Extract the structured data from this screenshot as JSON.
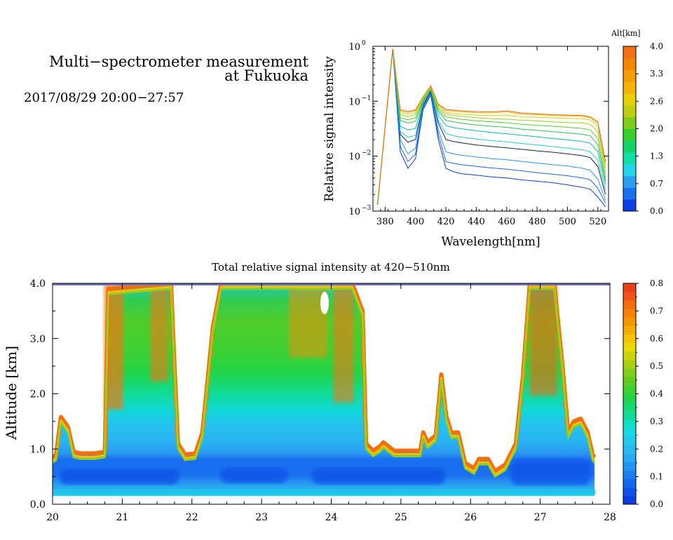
{
  "header": {
    "title_line1": "Multi−spectrometer measurement",
    "title_line2": "at Fukuoka",
    "date_range": "2017/08/29 20:00−27:57"
  },
  "chart_data": [
    {
      "type": "line",
      "xlabel": "Wavelength[nm]",
      "ylabel": "Relative signal intensity",
      "xlim": [
        372,
        527
      ],
      "ylim": [
        0.001,
        1
      ],
      "yscale": "log",
      "x_ticks": [
        "380",
        "400",
        "420",
        "440",
        "460",
        "480",
        "500",
        "520"
      ],
      "y_ticks": [
        {
          "base": "10",
          "exp": "−3"
        },
        {
          "base": "10",
          "exp": "−2"
        },
        {
          "base": "10",
          "exp": "−1"
        },
        {
          "base": "10",
          "exp": "0"
        }
      ],
      "grid": false,
      "x": [
        375,
        385,
        390,
        395,
        400,
        405,
        410,
        415,
        420,
        425,
        430,
        440,
        450,
        460,
        470,
        480,
        490,
        500,
        510,
        515,
        520,
        525
      ],
      "series": [
        {
          "color": "#0a3fc8",
          "values": [
            0.0013,
            0.9,
            0.012,
            0.006,
            0.009,
            0.07,
            0.13,
            0.02,
            0.006,
            0.0052,
            0.0048,
            0.0045,
            0.0042,
            0.004,
            0.0037,
            0.0035,
            0.0033,
            0.003,
            0.0027,
            0.0025,
            0.0018,
            0.0012
          ]
        },
        {
          "color": "#1a66e0",
          "values": [
            0.0013,
            0.9,
            0.015,
            0.008,
            0.011,
            0.075,
            0.14,
            0.025,
            0.008,
            0.0074,
            0.007,
            0.0065,
            0.0061,
            0.0058,
            0.0054,
            0.005,
            0.0047,
            0.0044,
            0.004,
            0.0037,
            0.0026,
            0.0014
          ]
        },
        {
          "color": "#2a95f0",
          "values": [
            0.0013,
            0.9,
            0.02,
            0.011,
            0.014,
            0.08,
            0.15,
            0.03,
            0.012,
            0.011,
            0.0104,
            0.0097,
            0.009,
            0.0086,
            0.008,
            0.0075,
            0.007,
            0.0066,
            0.006,
            0.0055,
            0.0038,
            0.0016
          ]
        },
        {
          "color": "#15223a",
          "values": [
            0.0013,
            0.9,
            0.025,
            0.018,
            0.02,
            0.085,
            0.15,
            0.04,
            0.02,
            0.0185,
            0.0175,
            0.016,
            0.015,
            0.0142,
            0.0133,
            0.0125,
            0.0118,
            0.011,
            0.0102,
            0.0094,
            0.0065,
            0.002
          ]
        },
        {
          "color": "#22c8dc",
          "values": [
            0.0013,
            0.9,
            0.028,
            0.022,
            0.024,
            0.09,
            0.16,
            0.045,
            0.026,
            0.0235,
            0.0222,
            0.0205,
            0.0192,
            0.0182,
            0.017,
            0.016,
            0.015,
            0.014,
            0.013,
            0.012,
            0.0085,
            0.0024
          ]
        },
        {
          "color": "#10b8a0",
          "values": [
            0.0013,
            0.9,
            0.035,
            0.03,
            0.032,
            0.095,
            0.16,
            0.055,
            0.036,
            0.033,
            0.0315,
            0.029,
            0.027,
            0.0255,
            0.024,
            0.0225,
            0.021,
            0.0198,
            0.0185,
            0.0172,
            0.012,
            0.003
          ]
        },
        {
          "color": "#30c050",
          "values": [
            0.0013,
            0.9,
            0.045,
            0.04,
            0.043,
            0.1,
            0.17,
            0.065,
            0.045,
            0.042,
            0.04,
            0.037,
            0.035,
            0.0335,
            0.031,
            0.0295,
            0.028,
            0.0265,
            0.025,
            0.0235,
            0.016,
            0.0035
          ]
        },
        {
          "color": "#58cc30",
          "values": [
            0.0013,
            0.9,
            0.05,
            0.046,
            0.05,
            0.105,
            0.17,
            0.07,
            0.052,
            0.049,
            0.047,
            0.044,
            0.042,
            0.0405,
            0.038,
            0.0365,
            0.035,
            0.0335,
            0.032,
            0.03,
            0.021,
            0.004
          ]
        },
        {
          "color": "#9ad020",
          "values": [
            0.0013,
            0.9,
            0.057,
            0.052,
            0.057,
            0.11,
            0.18,
            0.075,
            0.058,
            0.055,
            0.053,
            0.05,
            0.048,
            0.047,
            0.045,
            0.044,
            0.042,
            0.041,
            0.04,
            0.038,
            0.028,
            0.005
          ]
        },
        {
          "color": "#d8cc10",
          "values": [
            0.0013,
            0.9,
            0.062,
            0.057,
            0.062,
            0.115,
            0.18,
            0.08,
            0.063,
            0.06,
            0.058,
            0.056,
            0.055,
            0.056,
            0.052,
            0.051,
            0.05,
            0.049,
            0.048,
            0.046,
            0.035,
            0.006
          ]
        },
        {
          "color": "#f0b000",
          "values": [
            0.0013,
            0.9,
            0.067,
            0.062,
            0.067,
            0.12,
            0.19,
            0.085,
            0.068,
            0.066,
            0.064,
            0.062,
            0.061,
            0.064,
            0.058,
            0.057,
            0.055,
            0.054,
            0.053,
            0.05,
            0.04,
            0.007
          ]
        },
        {
          "color": "#e07018",
          "values": [
            0.0013,
            0.9,
            0.07,
            0.065,
            0.07,
            0.12,
            0.19,
            0.088,
            0.071,
            0.069,
            0.067,
            0.065,
            0.064,
            0.067,
            0.061,
            0.059,
            0.057,
            0.056,
            0.055,
            0.052,
            0.042,
            0.008
          ]
        }
      ],
      "colorbar": {
        "title": "Alt[km]",
        "labels": [
          "0.0",
          "0.7",
          "1.3",
          "2.0",
          "2.6",
          "3.3",
          "4.0"
        ],
        "colors": [
          "#0a3ee8",
          "#1670f0",
          "#2a9ff2",
          "#22d4ec",
          "#10e0a8",
          "#12d46a",
          "#34d02c",
          "#7ccc18",
          "#bcd010",
          "#e8d000",
          "#f5b200",
          "#f59c00",
          "#f58600",
          "#f57012"
        ]
      }
    },
    {
      "type": "heatmap",
      "title": "Total relative signal intensity at 420−510nm",
      "ylabel": "Altitude [km]",
      "xlim": [
        20,
        28
      ],
      "ylim": [
        0,
        4
      ],
      "x_ticks": [
        "20",
        "21",
        "22",
        "23",
        "24",
        "25",
        "26",
        "27",
        "28"
      ],
      "y_ticks": [
        "0.0",
        "1.0",
        "2.0",
        "3.0",
        "4.0"
      ],
      "grid": false,
      "data_range": [
        0.15,
        27.78
      ],
      "cloud_boundary_km": [
        [
          20.0,
          0.85
        ],
        [
          20.05,
          0.9
        ],
        [
          20.12,
          1.58
        ],
        [
          20.22,
          1.4
        ],
        [
          20.3,
          0.95
        ],
        [
          20.4,
          0.92
        ],
        [
          20.6,
          0.92
        ],
        [
          20.75,
          0.95
        ],
        [
          20.8,
          3.9
        ],
        [
          21.7,
          4.0
        ],
        [
          21.75,
          2.5
        ],
        [
          21.8,
          1.1
        ],
        [
          21.9,
          0.9
        ],
        [
          22.05,
          0.92
        ],
        [
          22.15,
          1.3
        ],
        [
          22.3,
          3.2
        ],
        [
          22.42,
          4.0
        ],
        [
          24.3,
          4.0
        ],
        [
          24.45,
          3.5
        ],
        [
          24.5,
          1.1
        ],
        [
          24.6,
          0.97
        ],
        [
          24.7,
          1.05
        ],
        [
          24.75,
          1.12
        ],
        [
          24.82,
          1.05
        ],
        [
          24.9,
          0.97
        ],
        [
          25.28,
          0.97
        ],
        [
          25.32,
          1.3
        ],
        [
          25.38,
          1.12
        ],
        [
          25.5,
          1.25
        ],
        [
          25.58,
          2.35
        ],
        [
          25.65,
          1.6
        ],
        [
          25.72,
          1.3
        ],
        [
          25.82,
          1.3
        ],
        [
          25.92,
          0.75
        ],
        [
          26.05,
          0.65
        ],
        [
          26.12,
          0.82
        ],
        [
          26.25,
          0.82
        ],
        [
          26.35,
          0.6
        ],
        [
          26.5,
          0.72
        ],
        [
          26.65,
          1.1
        ],
        [
          26.75,
          2.3
        ],
        [
          26.85,
          4.0
        ],
        [
          27.2,
          4.0
        ],
        [
          27.32,
          2.5
        ],
        [
          27.4,
          1.3
        ],
        [
          27.48,
          1.5
        ],
        [
          27.58,
          1.55
        ],
        [
          27.68,
          1.3
        ],
        [
          27.75,
          0.9
        ],
        [
          27.78,
          0.85
        ]
      ],
      "colorbar": {
        "labels": [
          "0.0",
          "0.1",
          "0.2",
          "0.3",
          "0.4",
          "0.5",
          "0.6",
          "0.7",
          "0.8"
        ],
        "colors": [
          "#0a3ee8",
          "#0f52ea",
          "#1568ee",
          "#1a7ef0",
          "#2294f2",
          "#2aa8f4",
          "#2ab8f0",
          "#22c8ec",
          "#18d8e4",
          "#10e0c0",
          "#10dc98",
          "#14d870",
          "#22d448",
          "#3cd030",
          "#5ccc20",
          "#80cc18",
          "#a8d010",
          "#cad40a",
          "#e8d800",
          "#f5c400",
          "#f5ae00",
          "#f59800",
          "#f58200",
          "#f56c10",
          "#f05418",
          "#e84018"
        ]
      }
    }
  ]
}
